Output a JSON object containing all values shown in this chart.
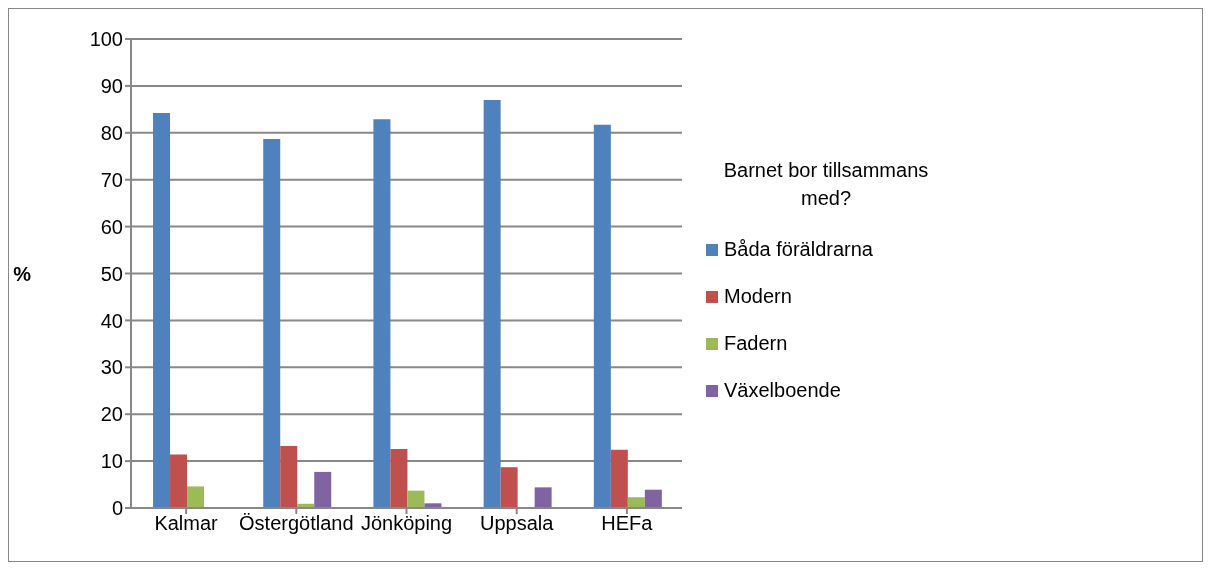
{
  "chart_data": {
    "type": "bar",
    "ylabel": "%",
    "legend_title": "Barnet bor tillsammans med?",
    "categories": [
      "Kalmar",
      "Östergötland",
      "Jönköping",
      "Uppsala",
      "HEFa"
    ],
    "series": [
      {
        "name": "Båda föräldrarna",
        "color": "#4f81bd",
        "values": [
          84.2,
          78.7,
          82.9,
          87.0,
          81.7
        ]
      },
      {
        "name": "Modern",
        "color": "#c0504d",
        "values": [
          11.4,
          13.2,
          12.6,
          8.7,
          12.4
        ]
      },
      {
        "name": "Fadern",
        "color": "#9bbb59",
        "values": [
          4.6,
          0.9,
          3.7,
          null,
          2.3
        ]
      },
      {
        "name": "Växelboende",
        "color": "#8064a2",
        "values": [
          null,
          7.7,
          1.0,
          4.4,
          3.9
        ]
      }
    ],
    "ylim": [
      0,
      100
    ],
    "yticks": [
      0,
      10,
      20,
      30,
      40,
      50,
      60,
      70,
      80,
      90,
      100
    ],
    "grid": "y",
    "legend": "right"
  }
}
